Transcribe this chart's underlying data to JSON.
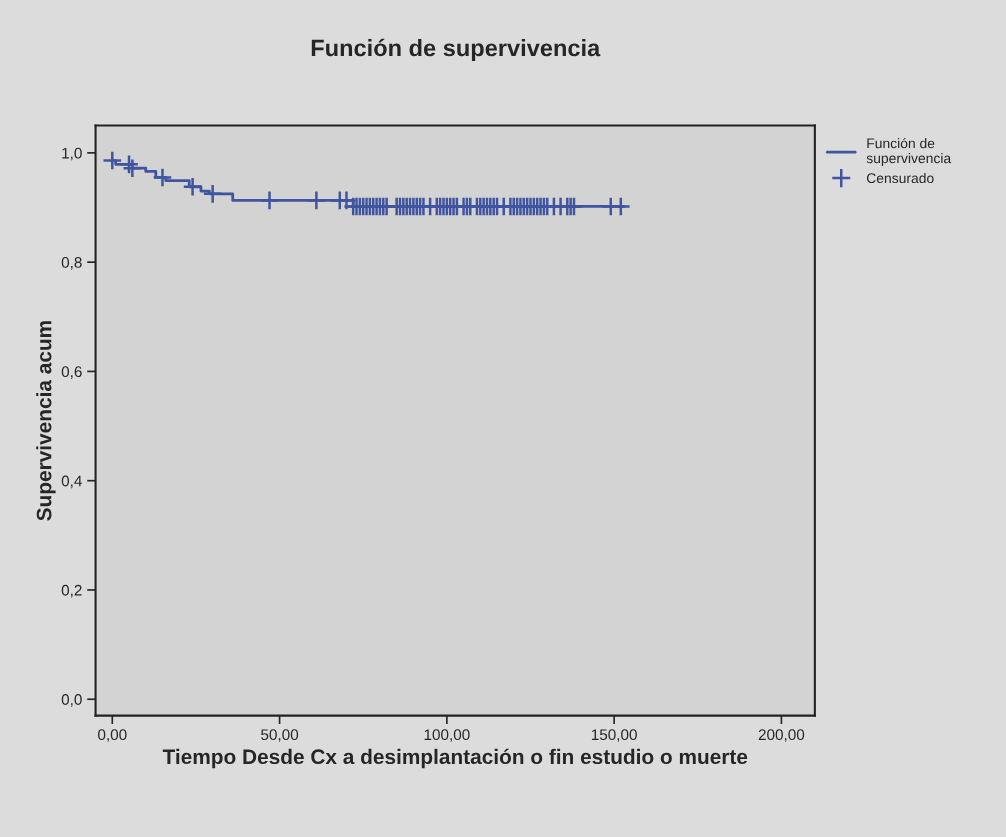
{
  "chart_data": {
    "type": "step",
    "title": "Función de supervivencia",
    "xlabel": "Tiempo Desde Cx a desimplantación o fin estudio o muerte",
    "ylabel": "Supervivencia acum",
    "xlim": [
      -5,
      210
    ],
    "ylim": [
      -0.03,
      1.05
    ],
    "xticks": [
      {
        "value": 0,
        "label": "0,00"
      },
      {
        "value": 50,
        "label": "50,00"
      },
      {
        "value": 100,
        "label": "100,00"
      },
      {
        "value": 150,
        "label": "150,00"
      },
      {
        "value": 200,
        "label": "200,00"
      }
    ],
    "yticks": [
      {
        "value": 0,
        "label": "0,0"
      },
      {
        "value": 0.2,
        "label": "0,2"
      },
      {
        "value": 0.4,
        "label": "0,4"
      },
      {
        "value": 0.6,
        "label": "0,6"
      },
      {
        "value": 0.8,
        "label": "0,8"
      },
      {
        "value": 1.0,
        "label": "1,0"
      }
    ],
    "grid": false,
    "legend": "top right",
    "series": [
      {
        "name": "Función de supervivencia",
        "color": "#4055a0",
        "line_style": "solid",
        "marker": "none",
        "x": [
          0,
          1,
          6,
          10,
          13,
          16,
          23,
          26.5,
          29,
          36,
          72,
          153
        ],
        "values": [
          0.986,
          0.979,
          0.972,
          0.966,
          0.955,
          0.949,
          0.938,
          0.93,
          0.925,
          0.913,
          0.902,
          0.902
        ]
      },
      {
        "name": "Censurado",
        "type": "scatter",
        "color": "#4055a0",
        "marker": "cross",
        "x": [
          0,
          5,
          6,
          15,
          24,
          30,
          47,
          61,
          68,
          70,
          72,
          73,
          74,
          75,
          76,
          77,
          78,
          79,
          80,
          81,
          82,
          85,
          86,
          87,
          88,
          89,
          90,
          91,
          92,
          93,
          95,
          97,
          98,
          99,
          100,
          101,
          102,
          103,
          105,
          106,
          107,
          109,
          110,
          111,
          112,
          113,
          114,
          115,
          117,
          119,
          120,
          121,
          122,
          123,
          124,
          125,
          126,
          127,
          128,
          129,
          130,
          132,
          134,
          136,
          137,
          138,
          149,
          152
        ],
        "values": [
          0.986,
          0.979,
          0.972,
          0.955,
          0.938,
          0.925,
          0.913,
          0.913,
          0.913,
          0.913,
          0.902,
          0.902,
          0.902,
          0.902,
          0.902,
          0.902,
          0.902,
          0.902,
          0.902,
          0.902,
          0.902,
          0.902,
          0.902,
          0.902,
          0.902,
          0.902,
          0.902,
          0.902,
          0.902,
          0.902,
          0.902,
          0.902,
          0.902,
          0.902,
          0.902,
          0.902,
          0.902,
          0.902,
          0.902,
          0.902,
          0.902,
          0.902,
          0.902,
          0.902,
          0.902,
          0.902,
          0.902,
          0.902,
          0.902,
          0.902,
          0.902,
          0.902,
          0.902,
          0.902,
          0.902,
          0.902,
          0.902,
          0.902,
          0.902,
          0.902,
          0.902,
          0.902,
          0.902,
          0.902,
          0.902,
          0.902,
          0.902,
          0.902
        ]
      }
    ]
  }
}
